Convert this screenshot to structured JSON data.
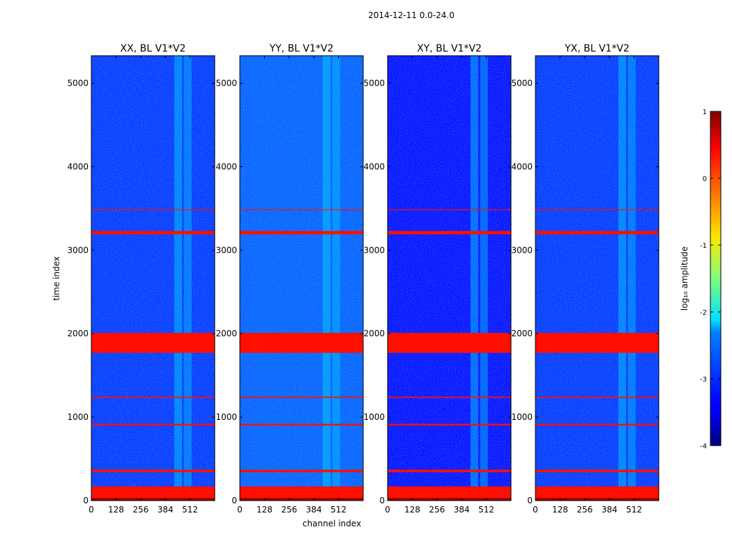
{
  "chart_data": {
    "type": "heatmap",
    "suptitle": "2014-12-11 0.0-24.0",
    "xlabel": "channel index",
    "ylabel": "time index",
    "xlim": [
      0,
      640
    ],
    "ylim": [
      0,
      5330
    ],
    "xticks": [
      0,
      128,
      256,
      384,
      512
    ],
    "yticks": [
      0,
      1000,
      2000,
      3000,
      4000,
      5000
    ],
    "colormap": "jet",
    "colorbar": {
      "label": "log₁₀ amplitude",
      "range": [
        -4,
        1
      ],
      "ticks": [
        -4,
        -3,
        -2,
        -1,
        0,
        1
      ]
    },
    "panels": [
      {
        "title": "XX, BL V1*V2",
        "background_log_amp": -3.1,
        "yticks_visible": true
      },
      {
        "title": "YY, BL V1*V2",
        "background_log_amp": -2.9,
        "yticks_visible": true
      },
      {
        "title": "XY, BL V1*V2",
        "background_log_amp": -3.3,
        "yticks_visible": true
      },
      {
        "title": "YX, BL V1*V2",
        "background_log_amp": -3.1,
        "yticks_visible": true
      }
    ],
    "flagged_rows": [
      {
        "t0": 0,
        "t1": 30,
        "log_amp": 0.9
      },
      {
        "t0": 30,
        "t1": 170,
        "log_amp": 0.3
      },
      {
        "t0": 340,
        "t1": 370,
        "log_amp": 0.3
      },
      {
        "t0": 900,
        "t1": 920,
        "log_amp": 0.3
      },
      {
        "t0": 1230,
        "t1": 1245,
        "log_amp": 0.3
      },
      {
        "t0": 1770,
        "t1": 2010,
        "log_amp": 0.3
      },
      {
        "t0": 3190,
        "t1": 3230,
        "log_amp": 0.3
      },
      {
        "t0": 3480,
        "t1": 3490,
        "log_amp": 0.3
      }
    ],
    "bright_channels": [
      {
        "c0": 430,
        "c1": 470,
        "log_amp": -2.3
      },
      {
        "c0": 480,
        "c1": 520,
        "log_amp": -2.4
      }
    ],
    "grid": false
  }
}
